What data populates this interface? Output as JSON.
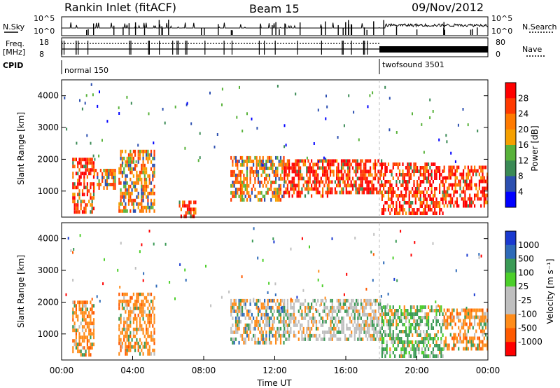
{
  "header": {
    "station": "Rankin Inlet (fitACF)",
    "beam": "Beam 15",
    "date": "09/Nov/2012"
  },
  "aux_labels": {
    "nsky": "N.Sky",
    "nsearch": "N.Search",
    "freq_line1": "Freq.",
    "freq_line2": "[MHz]",
    "nave": "Nave",
    "cpid": "CPID",
    "mode1": "normal 150",
    "mode2": "twofsound 3501",
    "sky_top_left": "10^5",
    "sky_bot_left": "10^0",
    "sky_top_right": "10^5",
    "sky_bot_right": "10^0",
    "freq_top": "18",
    "freq_bot": "8",
    "nave_top": "80",
    "nave_bot": "0"
  },
  "colors": {
    "power": [
      "#0000ff",
      "#2c4fb0",
      "#3a8a55",
      "#58b23a",
      "#f5a000",
      "#ff7a00",
      "#ff3a00",
      "#ff0000"
    ],
    "velocity": [
      "#ff0000",
      "#ff5a00",
      "#ff8c1a",
      "#bfbfbf",
      "#bfbfbf",
      "#4ccf2a",
      "#3a9a55",
      "#2e6ab8",
      "#1a3ad0"
    ]
  },
  "chart_data": [
    {
      "type": "heatmap",
      "panel": "power",
      "xlabel": "",
      "ylabel": "Slant Range [km]",
      "xlim": [
        "00:00",
        "00:00"
      ],
      "ylim": [
        180,
        4500
      ],
      "yticks": [
        "1000",
        "2000",
        "3000",
        "4000"
      ],
      "colorbar_label": "Power [dB]",
      "colorbar_ticks": [
        "4",
        "8",
        "12",
        "16",
        "20",
        "24",
        "28"
      ],
      "mode_change_time": "18:00",
      "echo_regions": [
        {
          "t0": 0.6,
          "t1": 1.8,
          "r0": 300,
          "r1": 2050,
          "level": "high"
        },
        {
          "t0": 1.8,
          "t1": 3.0,
          "r0": 1100,
          "r1": 1700,
          "level": "medium"
        },
        {
          "t0": 3.2,
          "t1": 5.2,
          "r0": 400,
          "r1": 2300,
          "level": "medium"
        },
        {
          "t0": 6.6,
          "t1": 7.5,
          "r0": 200,
          "r1": 700,
          "level": "high"
        },
        {
          "t0": 9.5,
          "t1": 12.5,
          "r0": 700,
          "r1": 2100,
          "level": "medium"
        },
        {
          "t0": 12.5,
          "t1": 15.0,
          "r0": 800,
          "r1": 2000,
          "level": "high"
        },
        {
          "t0": 15.0,
          "t1": 18.0,
          "r0": 900,
          "r1": 2000,
          "level": "high"
        },
        {
          "t0": 18.0,
          "t1": 21.5,
          "r0": 300,
          "r1": 1900,
          "level": "high"
        },
        {
          "t0": 21.5,
          "t1": 24.0,
          "r0": 500,
          "r1": 1800,
          "level": "high"
        }
      ]
    },
    {
      "type": "heatmap",
      "panel": "velocity",
      "xlabel": "Time UT",
      "ylabel": "Slant Range [km]",
      "xticks": [
        "00:00",
        "04:00",
        "08:00",
        "12:00",
        "16:00",
        "20:00",
        "00:00"
      ],
      "ylim": [
        180,
        4500
      ],
      "yticks": [
        "1000",
        "2000",
        "3000",
        "4000"
      ],
      "colorbar_label": "Velocity [m s⁻¹]",
      "colorbar_ticks": [
        "1000",
        "500",
        "100",
        "25",
        "-25",
        "-100",
        "-500",
        "-1000"
      ],
      "mode_change_time": "18:00",
      "echo_regions": [
        {
          "t0": 0.6,
          "t1": 1.8,
          "r0": 300,
          "r1": 2050,
          "level": "negative"
        },
        {
          "t0": 3.2,
          "t1": 5.2,
          "r0": 400,
          "r1": 2300,
          "level": "negative"
        },
        {
          "t0": 9.5,
          "t1": 12.5,
          "r0": 700,
          "r1": 2100,
          "level": "mixed"
        },
        {
          "t0": 12.5,
          "t1": 18.0,
          "r0": 800,
          "r1": 2100,
          "level": "low"
        },
        {
          "t0": 18.0,
          "t1": 21.5,
          "r0": 300,
          "r1": 1900,
          "level": "positive"
        },
        {
          "t0": 21.5,
          "t1": 24.0,
          "r0": 500,
          "r1": 1800,
          "level": "negative"
        }
      ]
    }
  ]
}
